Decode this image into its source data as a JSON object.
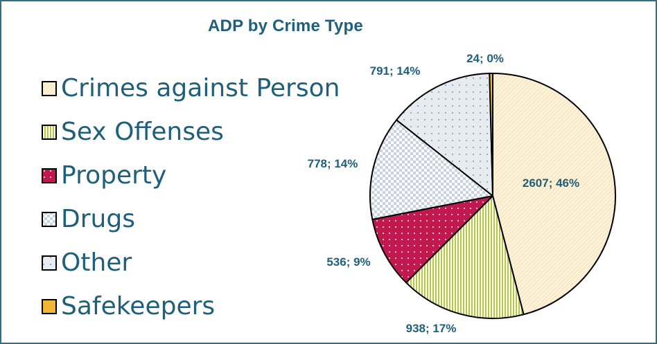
{
  "chart_data": {
    "type": "pie",
    "title": "ADP by Crime Type",
    "legend_position": "left",
    "slices": [
      {
        "label": "Crimes against Person",
        "value": 2607,
        "percent": "46%",
        "data_label": "2607; 46%",
        "color": "#fdf1d6",
        "pattern": "diagonal-light"
      },
      {
        "label": "Sex Offenses",
        "value": 938,
        "percent": "17%",
        "data_label": "938; 17%",
        "color": "#b5c93e",
        "pattern": "vertical-stripes"
      },
      {
        "label": "Property",
        "value": 536,
        "percent": "9%",
        "data_label": "536; 9%",
        "color": "#c0184f",
        "pattern": "dots"
      },
      {
        "label": "Drugs",
        "value": 778,
        "percent": "14%",
        "data_label": "778; 14%",
        "color": "#c5d3e3",
        "pattern": "checker"
      },
      {
        "label": "Other",
        "value": 791,
        "percent": "14%",
        "data_label": "791; 14%",
        "color": "#e6ecf2",
        "pattern": "sparse-dots"
      },
      {
        "label": "Safekeepers",
        "value": 24,
        "percent": "0%",
        "data_label": "24; 0%",
        "color": "#f2b632",
        "pattern": "solid"
      }
    ]
  }
}
